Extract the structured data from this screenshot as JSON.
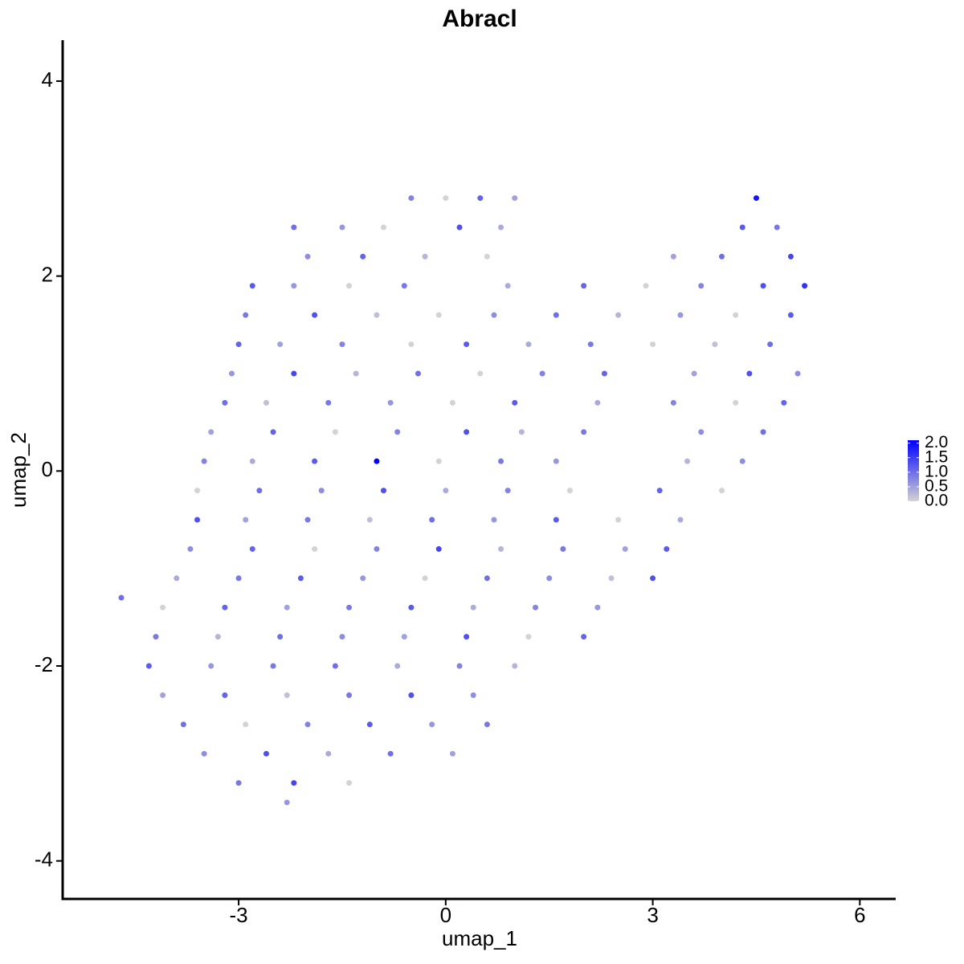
{
  "chart_data": {
    "type": "scatter",
    "title": "Abracl",
    "x_label": "umap_1",
    "y_label": "umap_2",
    "xlim": [
      -5.55,
      6.52
    ],
    "xticks": [
      -3,
      0,
      3,
      6
    ],
    "ylim": [
      -4.39,
      4.42
    ],
    "yticks": [
      -4,
      -2,
      0,
      2,
      4
    ],
    "color_low": "#d3d3d3",
    "color_high": "#0000ff",
    "color_lim": [
      0,
      2.1
    ],
    "color_ticks": [
      {
        "value": 0,
        "label": "0.0"
      },
      {
        "value": 0.5,
        "label": "0.5"
      },
      {
        "value": 1,
        "label": "1.0"
      },
      {
        "value": 1.5,
        "label": "1.5"
      },
      {
        "value": 2,
        "label": "2.0"
      }
    ],
    "x": [
      -0.5,
      0.0,
      0.5,
      1.0,
      4.5,
      -2.2,
      -1.5,
      -0.9,
      0.2,
      0.8,
      4.3,
      4.8,
      -2.0,
      -1.2,
      -0.3,
      0.6,
      3.3,
      4.0,
      5.0,
      -2.8,
      -2.2,
      -1.4,
      -0.6,
      0.9,
      2.0,
      2.9,
      3.7,
      4.6,
      5.2,
      -2.9,
      -1.9,
      -1.0,
      -0.1,
      0.7,
      1.6,
      2.5,
      3.4,
      4.2,
      5.0,
      -3.0,
      -2.4,
      -1.5,
      -0.5,
      0.3,
      1.2,
      2.1,
      3.0,
      3.9,
      4.7,
      -3.1,
      -2.2,
      -1.3,
      -0.4,
      0.5,
      1.4,
      2.3,
      3.6,
      4.4,
      5.1,
      -3.2,
      -2.6,
      -1.7,
      -0.8,
      0.1,
      1.0,
      2.2,
      3.3,
      4.2,
      4.9,
      -3.4,
      -2.5,
      -1.6,
      -0.7,
      0.3,
      1.1,
      2.0,
      3.7,
      4.6,
      -3.5,
      -2.8,
      -1.9,
      -1.0,
      -0.1,
      0.8,
      1.6,
      3.5,
      4.3,
      -3.6,
      -2.7,
      -1.8,
      -0.9,
      0.0,
      0.9,
      1.8,
      3.1,
      4.0,
      -3.6,
      -2.9,
      -2.0,
      -1.1,
      -0.2,
      0.7,
      1.6,
      2.5,
      3.4,
      -3.7,
      -2.8,
      -1.9,
      -1.0,
      -0.1,
      0.8,
      1.7,
      2.6,
      3.2,
      -3.9,
      -3.0,
      -2.1,
      -1.2,
      -0.3,
      0.6,
      1.5,
      2.4,
      3.0,
      -4.1,
      -3.2,
      -2.3,
      -1.4,
      -0.5,
      0.4,
      1.3,
      2.2,
      -4.2,
      -3.3,
      -2.4,
      -1.5,
      -0.6,
      0.3,
      1.2,
      2.0,
      -4.3,
      -3.4,
      -2.5,
      -1.6,
      -0.7,
      0.2,
      1.0,
      -4.1,
      -3.2,
      -2.3,
      -1.4,
      -0.5,
      0.4,
      -3.8,
      -2.9,
      -2.0,
      -1.1,
      -0.2,
      0.6,
      -3.5,
      -2.6,
      -1.7,
      -0.8,
      0.1,
      -3.0,
      -2.2,
      -1.4,
      -2.3,
      -4.7
    ],
    "values": [
      2.8,
      2.8,
      2.8,
      2.8,
      2.8,
      2.5,
      2.5,
      2.5,
      2.5,
      2.5,
      2.5,
      2.5,
      2.2,
      2.2,
      2.2,
      2.2,
      2.2,
      2.2,
      2.2,
      1.9,
      1.9,
      1.9,
      1.9,
      1.9,
      1.9,
      1.9,
      1.9,
      1.9,
      1.9,
      1.6,
      1.6,
      1.6,
      1.6,
      1.6,
      1.6,
      1.6,
      1.6,
      1.6,
      1.6,
      1.3,
      1.3,
      1.3,
      1.3,
      1.3,
      1.3,
      1.3,
      1.3,
      1.3,
      1.3,
      1.0,
      1.0,
      1.0,
      1.0,
      1.0,
      1.0,
      1.0,
      1.0,
      1.0,
      1.0,
      0.7,
      0.7,
      0.7,
      0.7,
      0.7,
      0.7,
      0.7,
      0.7,
      0.7,
      0.7,
      0.4,
      0.4,
      0.4,
      0.4,
      0.4,
      0.4,
      0.4,
      0.4,
      0.4,
      0.1,
      0.1,
      0.1,
      0.1,
      0.1,
      0.1,
      0.1,
      0.1,
      0.1,
      -0.2,
      -0.2,
      -0.2,
      -0.2,
      -0.2,
      -0.2,
      -0.2,
      -0.2,
      -0.2,
      -0.5,
      -0.5,
      -0.5,
      -0.5,
      -0.5,
      -0.5,
      -0.5,
      -0.5,
      -0.5,
      -0.8,
      -0.8,
      -0.8,
      -0.8,
      -0.8,
      -0.8,
      -0.8,
      -0.8,
      -0.8,
      -1.1,
      -1.1,
      -1.1,
      -1.1,
      -1.1,
      -1.1,
      -1.1,
      -1.1,
      -1.1,
      -1.4,
      -1.4,
      -1.4,
      -1.4,
      -1.4,
      -1.4,
      -1.4,
      -1.4,
      -1.7,
      -1.7,
      -1.7,
      -1.7,
      -1.7,
      -1.7,
      -1.7,
      -1.7,
      -2.0,
      -2.0,
      -2.0,
      -2.0,
      -2.0,
      -2.0,
      -2.0,
      -2.3,
      -2.3,
      -2.3,
      -2.3,
      -2.3,
      -2.3,
      -2.6,
      -2.6,
      -2.6,
      -2.6,
      -2.6,
      -2.6,
      -2.9,
      -2.9,
      -2.9,
      -2.9,
      -2.9,
      -3.2,
      -3.2,
      -3.2,
      -3.4,
      -1.3
    ],
    "expression": [
      0.8,
      0,
      1.1,
      0.5,
      1.9,
      1.0,
      0.6,
      0,
      1.3,
      0.4,
      1.2,
      0.9,
      0.7,
      1.1,
      0.3,
      0,
      0.5,
      1.0,
      1.4,
      1.2,
      0.6,
      0,
      0.9,
      0.4,
      1.1,
      0,
      0.8,
      1.3,
      1.6,
      0.9,
      1.3,
      0.2,
      0,
      0.7,
      1.0,
      0.3,
      0.6,
      0,
      1.2,
      1.1,
      0.5,
      0.8,
      0,
      1.2,
      0.4,
      0.9,
      0,
      0.2,
      1.0,
      0.6,
      1.4,
      0.3,
      1.0,
      0,
      0.8,
      1.1,
      0.5,
      1.3,
      0.7,
      1.0,
      0.2,
      0.9,
      0.6,
      0,
      1.2,
      0.4,
      0.8,
      0,
      1.1,
      0.5,
      1.1,
      0,
      0.8,
      1.3,
      0.3,
      0.9,
      0.7,
      1.0,
      0.8,
      0.4,
      1.2,
      2.1,
      0,
      0.9,
      0.6,
      0.3,
      0.7,
      0,
      1.0,
      0.7,
      1.3,
      0.4,
      0.8,
      0,
      1.1,
      0,
      1.3,
      0.5,
      0.9,
      0.2,
      1.0,
      0.6,
      1.2,
      0,
      0.4,
      0.7,
      1.1,
      0,
      0.8,
      1.4,
      0.3,
      0.9,
      0.5,
      1.2,
      0.4,
      0.9,
      1.2,
      0.6,
      0,
      1.0,
      0.7,
      0.2,
      1.3,
      0,
      1.1,
      0.5,
      0.9,
      1.2,
      0.4,
      0.8,
      0.6,
      0.9,
      0.3,
      1.0,
      0.7,
      0.5,
      1.3,
      0,
      1.1,
      1.2,
      0.6,
      0.9,
      1.0,
      0.4,
      0.8,
      0.3,
      0.5,
      1.1,
      0.2,
      0.9,
      1.3,
      0.7,
      1.0,
      0,
      0.8,
      1.2,
      0.6,
      0.9,
      0.7,
      1.3,
      0.4,
      1.0,
      0.5,
      0.9,
      1.4,
      0,
      0.6,
      1.0
    ]
  }
}
